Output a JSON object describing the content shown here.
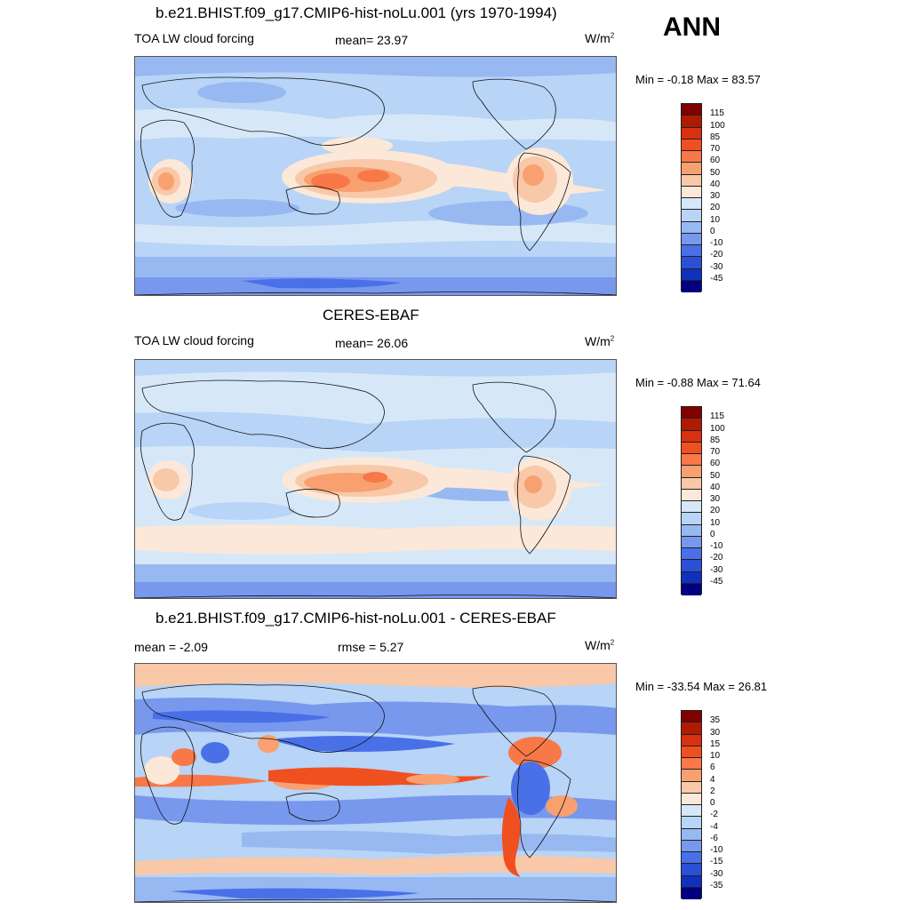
{
  "season": "ANN",
  "panels": [
    {
      "title": "b.e21.BHIST.f09_g17.CMIP6-hist-noLu.001 (yrs 1970-1994)",
      "left_label": "TOA LW cloud forcing",
      "mid_label": "mean=  23.97",
      "units_base": "W/m",
      "units_exp": "2",
      "minmax": "Min =  -0.18 Max =  83.57",
      "levels": [
        "115",
        "100",
        "85",
        "70",
        "60",
        "50",
        "40",
        "30",
        "20",
        "10",
        "0",
        "-10",
        "-20",
        "-30",
        "-45"
      ],
      "colors": [
        "#800000",
        "#b01a00",
        "#d83010",
        "#f05020",
        "#f87848",
        "#f8a070",
        "#f8c8a8",
        "#fbe8d8",
        "#d6e8f8",
        "#b8d4f6",
        "#98b8f2",
        "#7898ee",
        "#4a70e8",
        "#2a50d8",
        "#1030c0",
        "#000080"
      ]
    },
    {
      "title": "CERES-EBAF",
      "left_label": "TOA LW cloud forcing",
      "mid_label": "mean=  26.06",
      "units_base": "W/m",
      "units_exp": "2",
      "minmax": "Min =  -0.88 Max =  71.64",
      "levels": [
        "115",
        "100",
        "85",
        "70",
        "60",
        "50",
        "40",
        "30",
        "20",
        "10",
        "0",
        "-10",
        "-20",
        "-30",
        "-45"
      ],
      "colors": [
        "#800000",
        "#b01a00",
        "#d83010",
        "#f05020",
        "#f87848",
        "#f8a070",
        "#f8c8a8",
        "#fbe8d8",
        "#d6e8f8",
        "#b8d4f6",
        "#98b8f2",
        "#7898ee",
        "#4a70e8",
        "#2a50d8",
        "#1030c0",
        "#000080"
      ]
    },
    {
      "title": "b.e21.BHIST.f09_g17.CMIP6-hist-noLu.001 - CERES-EBAF",
      "left_label": "mean =  -2.09",
      "mid_label": "rmse =   5.27",
      "units_base": "W/m",
      "units_exp": "2",
      "minmax": "Min = -33.54 Max =  26.81",
      "levels": [
        "35",
        "30",
        "15",
        "10",
        "6",
        "4",
        "2",
        "0",
        "-2",
        "-4",
        "-6",
        "-10",
        "-15",
        "-30",
        "-35"
      ],
      "colors": [
        "#800000",
        "#b01a00",
        "#d83010",
        "#f05020",
        "#f87848",
        "#f8a070",
        "#f8c8a8",
        "#fbe8d8",
        "#d6e8f8",
        "#b8d4f6",
        "#98b8f2",
        "#7898ee",
        "#4a70e8",
        "#2a50d8",
        "#1030c0",
        "#000080"
      ]
    }
  ]
}
